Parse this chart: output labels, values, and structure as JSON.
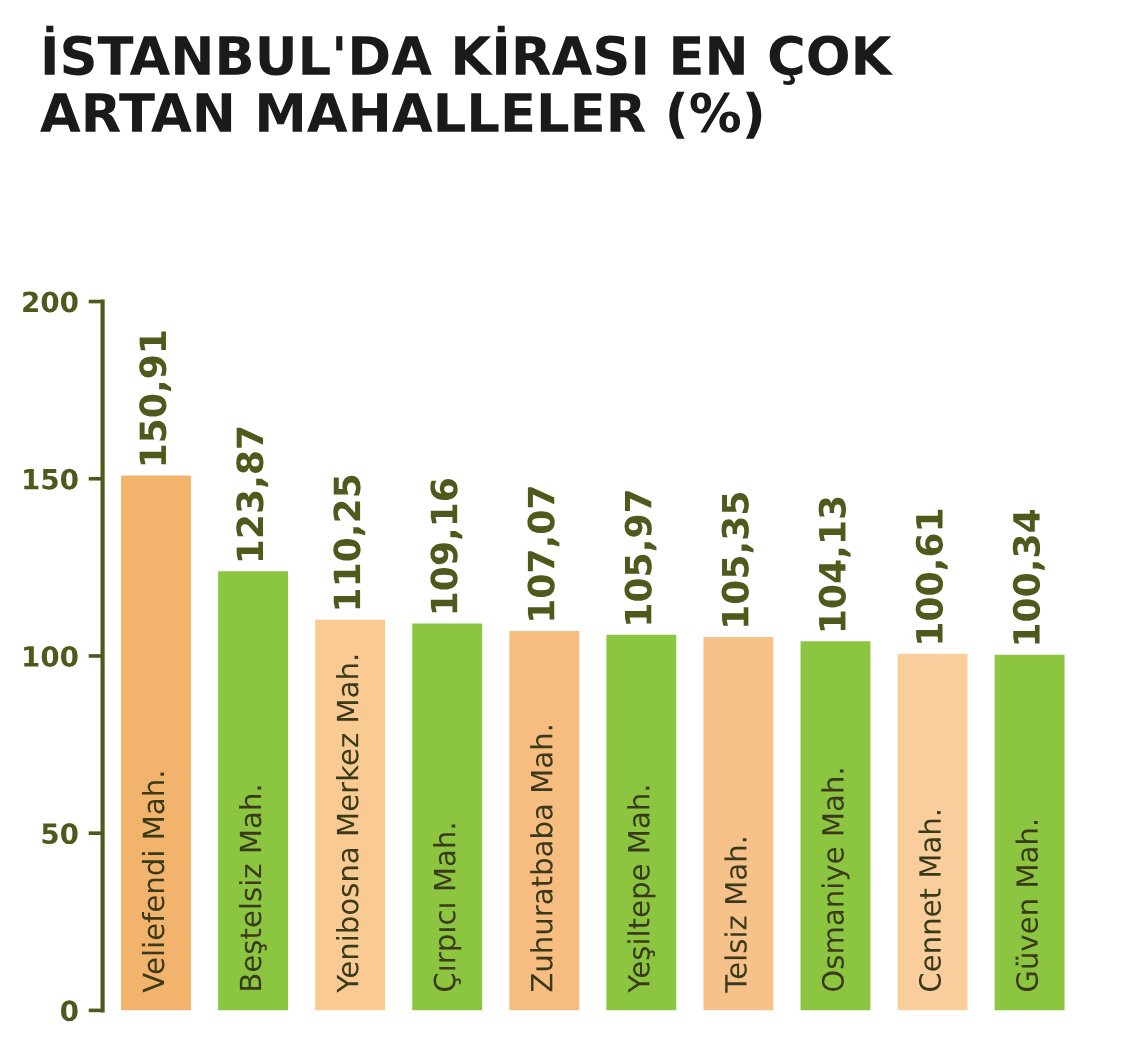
{
  "chart_data": {
    "type": "bar",
    "title": "İSTANBUL'DA KİRASI EN ÇOK\nARTAN MAHALLELER (%)",
    "categories": [
      "Veliefendi Mah.",
      "Beştelsiz Mah.",
      "Yenibosna Merkez Mah.",
      "Çırpıcı Mah.",
      "Zuhuratbaba Mah.",
      "Yeşiltepe Mah.",
      "Telsiz Mah.",
      "Osmaniye Mah.",
      "Cennet Mah.",
      "Güven Mah."
    ],
    "values": [
      150.91,
      123.87,
      110.25,
      109.16,
      107.07,
      105.97,
      105.35,
      104.13,
      100.61,
      100.34
    ],
    "value_labels": [
      "150,91",
      "123,87",
      "110,25",
      "109,16",
      "107,07",
      "105,97",
      "105,35",
      "104,13",
      "100,61",
      "100,34"
    ],
    "colors": [
      "#f2b36c",
      "#8cc540",
      "#f9ca92",
      "#8cc540",
      "#f6bc80",
      "#8cc540",
      "#f7c289",
      "#8cc540",
      "#f9ce9c",
      "#8cc540"
    ],
    "ylim": [
      0,
      200
    ],
    "yticks": [
      0,
      50,
      100,
      150,
      200
    ],
    "grid": false
  }
}
